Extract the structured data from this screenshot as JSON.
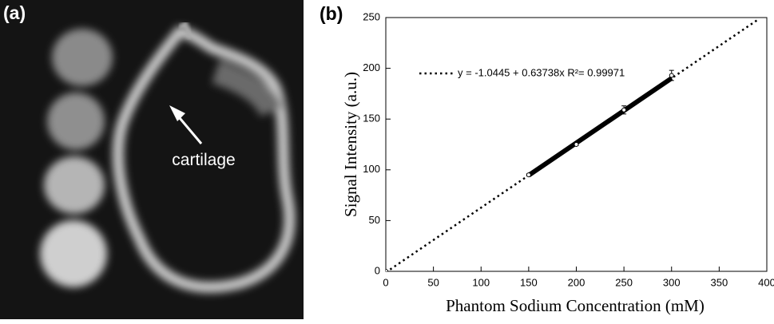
{
  "image_panel": {
    "label": "(a)",
    "annotation": "cartilage"
  },
  "chart_data": {
    "type": "scatter",
    "panel_label": "(b)",
    "x_label": "Phantom Sodium Concentration (mM)",
    "y_label": "Signal Intensity (a.u.)",
    "xlim": [
      0,
      400
    ],
    "xticks": [
      0,
      50,
      100,
      150,
      200,
      250,
      300,
      350,
      400
    ],
    "ylim": [
      0,
      250
    ],
    "yticks": [
      0,
      50,
      100,
      150,
      200,
      250
    ],
    "legend": "top-left",
    "series": [
      {
        "name": "y = -1.0445 + 0.63738x R²= 0.99971",
        "type": "line",
        "style": "dotted",
        "color": "#000000",
        "x": [
          0,
          392
        ],
        "values": [
          -1.04,
          248.8
        ]
      },
      {
        "type": "line",
        "style": "solid",
        "color": "#000000",
        "x": [
          150,
          300
        ],
        "values": [
          94.6,
          190.2
        ]
      },
      {
        "type": "scatter",
        "color": "#000000",
        "x": [
          0,
          150,
          200,
          250,
          300
        ],
        "values": [
          0,
          95,
          125,
          159,
          193
        ],
        "errors": [
          0.5,
          1,
          1,
          4,
          5
        ]
      }
    ]
  }
}
